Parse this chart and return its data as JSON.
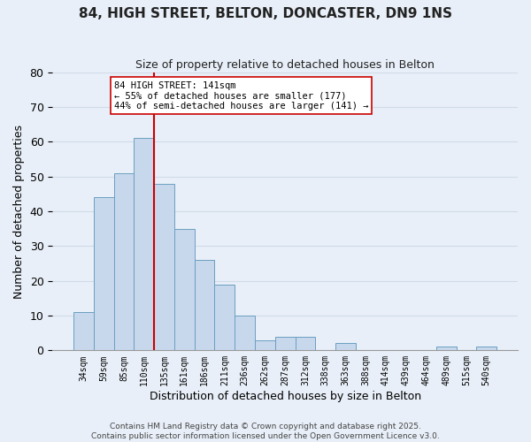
{
  "title": "84, HIGH STREET, BELTON, DONCASTER, DN9 1NS",
  "subtitle": "Size of property relative to detached houses in Belton",
  "xlabel": "Distribution of detached houses by size in Belton",
  "ylabel": "Number of detached properties",
  "bar_labels": [
    "34sqm",
    "59sqm",
    "85sqm",
    "110sqm",
    "135sqm",
    "161sqm",
    "186sqm",
    "211sqm",
    "236sqm",
    "262sqm",
    "287sqm",
    "312sqm",
    "338sqm",
    "363sqm",
    "388sqm",
    "414sqm",
    "439sqm",
    "464sqm",
    "489sqm",
    "515sqm",
    "540sqm"
  ],
  "bar_values": [
    11,
    44,
    51,
    61,
    48,
    35,
    26,
    19,
    10,
    3,
    4,
    4,
    0,
    2,
    0,
    0,
    0,
    0,
    1,
    0,
    1
  ],
  "bar_color": "#c8d8ec",
  "bar_edge_color": "#6a9fc0",
  "highlight_line_color": "#cc0000",
  "annotation_title": "84 HIGH STREET: 141sqm",
  "annotation_line1": "← 55% of detached houses are smaller (177)",
  "annotation_line2": "44% of semi-detached houses are larger (141) →",
  "annotation_box_color": "white",
  "annotation_box_edge": "#cc0000",
  "ylim": [
    0,
    80
  ],
  "yticks": [
    0,
    10,
    20,
    30,
    40,
    50,
    60,
    70,
    80
  ],
  "grid_color": "#d0dce8",
  "background_color": "#e8eff8",
  "footnote1": "Contains HM Land Registry data © Crown copyright and database right 2025.",
  "footnote2": "Contains public sector information licensed under the Open Government Licence v3.0."
}
